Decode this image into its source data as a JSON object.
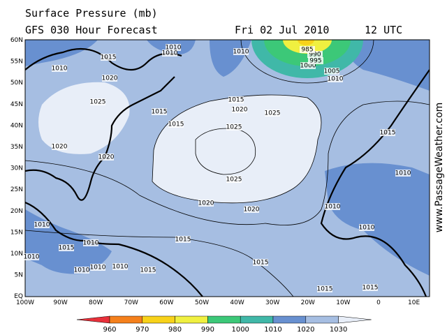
{
  "header": {
    "title": "Surface Pressure (mb)",
    "subtitle": "GFS 030 Hour Forecast",
    "date": "Fri 02 Jul 2010",
    "time": "12 UTC"
  },
  "watermark": "www.PassageWeather.com",
  "lat_labels": [
    "60N",
    "55N",
    "50N",
    "45N",
    "40N",
    "35N",
    "30N",
    "25N",
    "20N",
    "15N",
    "10N",
    "5N",
    "EQ"
  ],
  "lon_labels": [
    "100W",
    "90W",
    "80W",
    "70W",
    "60W",
    "50W",
    "40W",
    "30W",
    "20W",
    "10W",
    "0",
    "10E"
  ],
  "contour_labels": [
    "1015",
    "1010",
    "1010",
    "1010",
    "1010",
    "1020",
    "1025",
    "1015",
    "1015",
    "1020",
    "1015",
    "1025",
    "1025",
    "1020",
    "1020",
    "1025",
    "1020",
    "1020",
    "1015",
    "1010",
    "1010",
    "1010",
    "1010",
    "1015",
    "1010",
    "1010",
    "1010",
    "1010",
    "1010",
    "1015",
    "1015",
    "1015",
    "1015",
    "1015",
    "1010",
    "1005",
    "1000",
    "995",
    "990",
    "985"
  ],
  "colorbar": {
    "levels": [
      960,
      970,
      980,
      990,
      1000,
      1010,
      1020,
      1030
    ],
    "colors": [
      "#e8303a",
      "#f5801c",
      "#f8d21a",
      "#f0f040",
      "#3cc878",
      "#40b8a8",
      "#6890d0",
      "#a6bee2",
      "#e8eef8"
    ]
  }
}
